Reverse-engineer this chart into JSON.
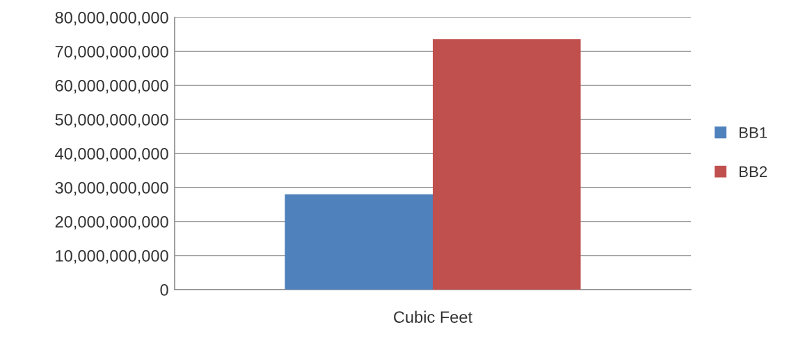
{
  "chart_data": {
    "type": "bar",
    "categories": [
      "Cubic Feet"
    ],
    "series": [
      {
        "name": "BB1",
        "color": "#4f81bd",
        "values": [
          28000000000
        ]
      },
      {
        "name": "BB2",
        "color": "#c0504d",
        "values": [
          73600000000
        ]
      }
    ],
    "ylim": [
      0,
      80000000000
    ],
    "yticks": [
      0,
      {
        "value": 10000000000,
        "label": "10,000,000,000"
      },
      {
        "value": 20000000000,
        "label": "20,000,000,000"
      },
      {
        "value": 30000000000,
        "label": "30,000,000,000"
      },
      {
        "value": 40000000000,
        "label": "40,000,000,000"
      },
      {
        "value": 50000000000,
        "label": "50,000,000,000"
      },
      {
        "value": 60000000000,
        "label": "60,000,000,000"
      },
      {
        "value": 70000000000,
        "label": "70,000,000,000"
      },
      {
        "value": 80000000000,
        "label": "80,000,000,000"
      }
    ],
    "grid": "y",
    "legend": "right"
  }
}
